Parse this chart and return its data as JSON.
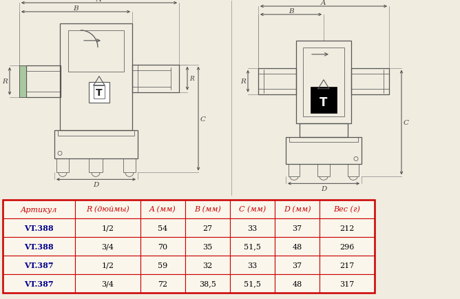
{
  "bg_color": "#f0ece0",
  "line_color": "#555555",
  "dim_color": "#444444",
  "table_header": [
    "Артикул",
    "R (дюймы)",
    "A (мм)",
    "B (мм)",
    "C (мм)",
    "D (мм)",
    "Вес (г)"
  ],
  "table_rows": [
    [
      "VT.388",
      "1/2",
      "54",
      "27",
      "33",
      "37",
      "212"
    ],
    [
      "VT.388",
      "3/4",
      "70",
      "35",
      "51,5",
      "48",
      "296"
    ],
    [
      "VT.387",
      "1/2",
      "59",
      "32",
      "33",
      "37",
      "217"
    ],
    [
      "VT.387",
      "3/4",
      "72",
      "38,5",
      "51,5",
      "48",
      "317"
    ]
  ],
  "header_text_color": "#cc0000",
  "header_bg": "#faf6ec",
  "row_bg": "#faf6ec",
  "border_color": "#cc0000",
  "first_col_color": "#00008b"
}
